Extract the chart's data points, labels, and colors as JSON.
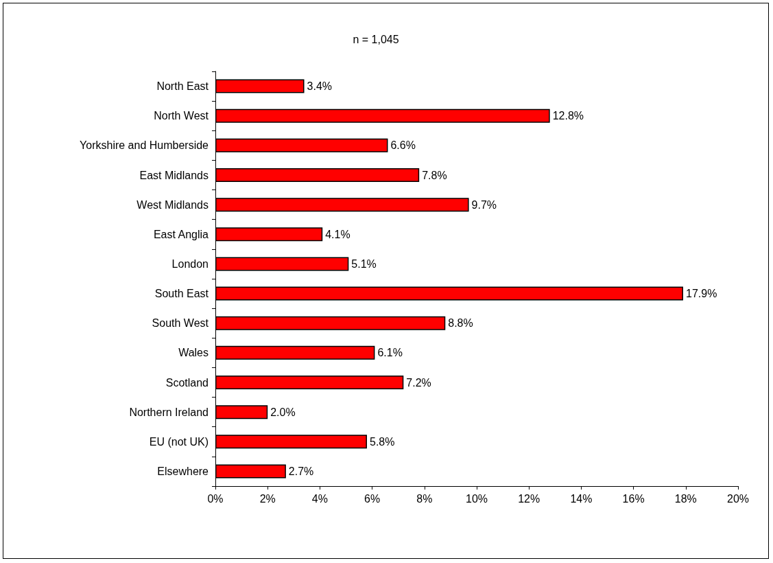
{
  "chart_data": {
    "type": "bar",
    "orientation": "horizontal",
    "title": "n = 1,045",
    "categories": [
      "North East",
      "North West",
      "Yorkshire and Humberside",
      "East Midlands",
      "West Midlands",
      "East Anglia",
      "London",
      "South East",
      "South West",
      "Wales",
      "Scotland",
      "Northern Ireland",
      "EU (not UK)",
      "Elsewhere"
    ],
    "values": [
      3.4,
      12.8,
      6.6,
      7.8,
      9.7,
      4.1,
      5.1,
      17.9,
      8.8,
      6.1,
      7.2,
      2.0,
      5.8,
      2.7
    ],
    "value_labels": [
      "3.4%",
      "12.8%",
      "6.6%",
      "7.8%",
      "9.7%",
      "4.1%",
      "5.1%",
      "17.9%",
      "8.8%",
      "6.1%",
      "7.2%",
      "2.0%",
      "5.8%",
      "2.7%"
    ],
    "color": "#ff0000",
    "xlim": [
      0,
      20
    ],
    "xticks": [
      {
        "value": 0,
        "label": "0%"
      },
      {
        "value": 2,
        "label": "2%"
      },
      {
        "value": 4,
        "label": "4%"
      },
      {
        "value": 6,
        "label": "6%"
      },
      {
        "value": 8,
        "label": "8%"
      },
      {
        "value": 10,
        "label": "10%"
      },
      {
        "value": 12,
        "label": "12%"
      },
      {
        "value": 14,
        "label": "14%"
      },
      {
        "value": 16,
        "label": "16%"
      },
      {
        "value": 18,
        "label": "18%"
      },
      {
        "value": 20,
        "label": "20%"
      }
    ],
    "grid": false
  }
}
